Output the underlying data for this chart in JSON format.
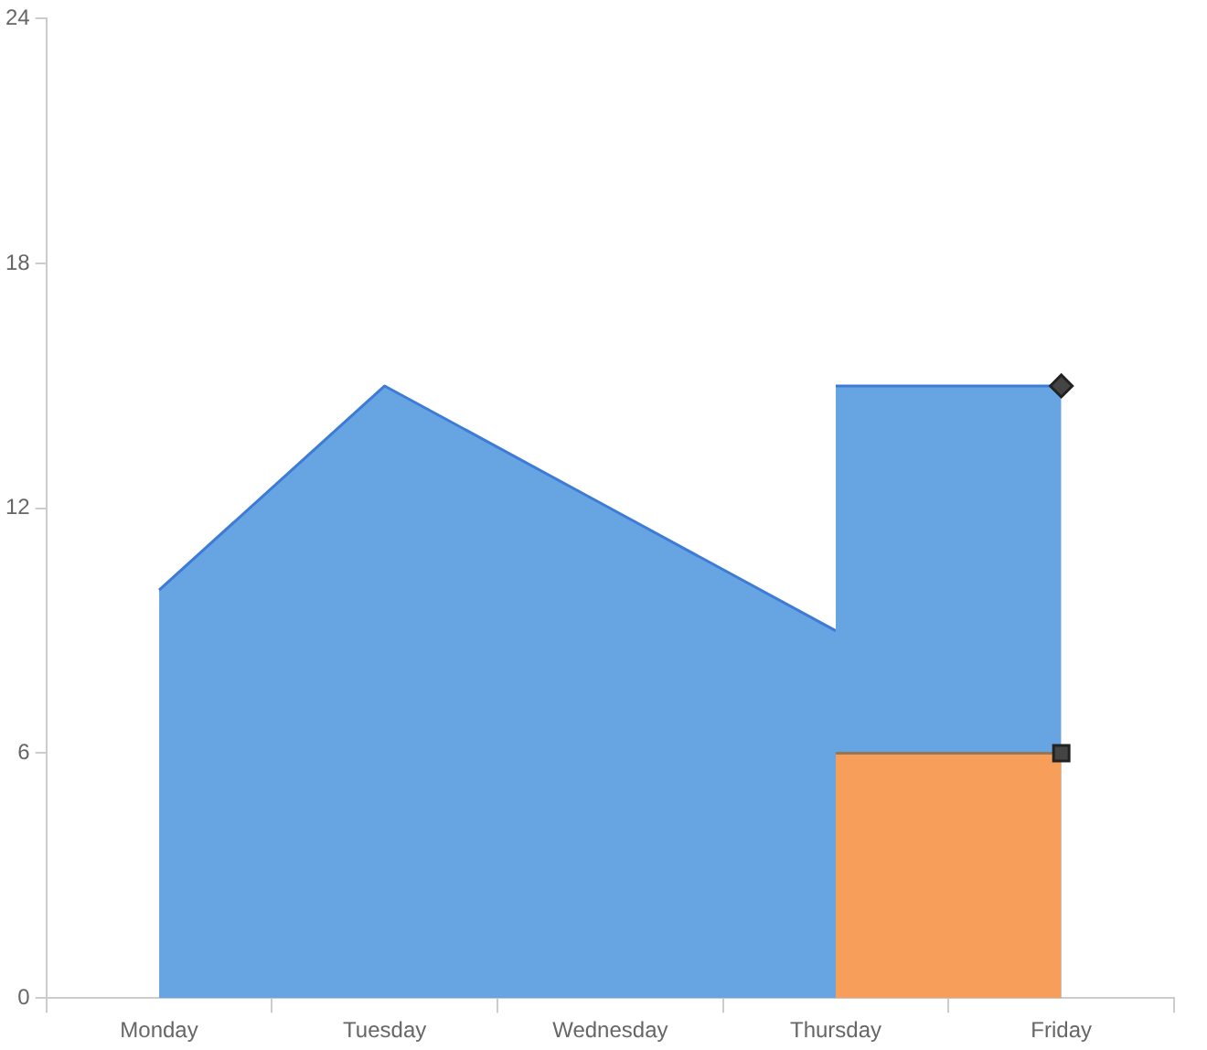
{
  "chart_data": {
    "type": "area",
    "categories": [
      "Monday",
      "Tuesday",
      "Wednesday",
      "Thursday",
      "Friday"
    ],
    "series": [
      {
        "color": "#67a4e2",
        "values": [
          10,
          15,
          12,
          9,
          null
        ]
      },
      {
        "color": "#67a4e2",
        "values": [
          null,
          null,
          null,
          15,
          15
        ],
        "marker": "diamond"
      },
      {
        "color": "#f79f5a",
        "values": [
          null,
          null,
          null,
          6,
          6
        ],
        "marker": "square"
      }
    ],
    "ylim": [
      0,
      24
    ],
    "yticks": [
      0,
      6,
      12,
      18,
      24
    ],
    "grid": false,
    "legend": false
  }
}
